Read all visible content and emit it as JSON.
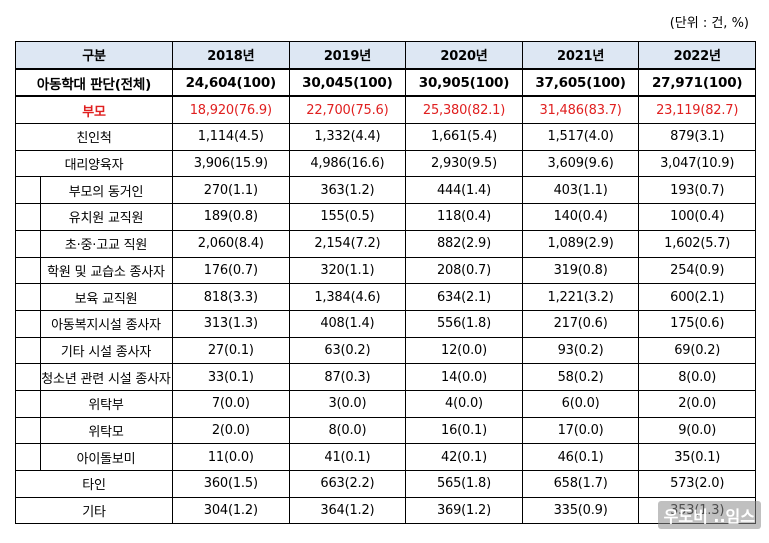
{
  "unit_note": "(단위 : 건, %)",
  "header": [
    "구분",
    "2018년",
    "2019년",
    "2020년",
    "2021년",
    "2022년"
  ],
  "rows": [
    {
      "label": "아동학대 판단(전체)",
      "values": [
        "24,604(100)",
        "30,045(100)",
        "30,905(100)",
        "37,605(100)",
        "27,971(100)"
      ]
    },
    {
      "label": "부모",
      "values": [
        "18,920(76.9)",
        "22,700(75.6)",
        "25,380(82.1)",
        "31,486(83.7)",
        "23,119(82.7)"
      ]
    },
    {
      "label": "친인척",
      "values": [
        "1,114(4.5)",
        "1,332(4.4)",
        "1,661(5.4)",
        "1,517(4.0)",
        "879(3.1)"
      ]
    },
    {
      "label": "대리양육자",
      "values": [
        "3,906(15.9)",
        "4,986(16.6)",
        "2,930(9.5)",
        "3,609(9.6)",
        "3,047(10.9)"
      ]
    },
    {
      "label": "부모의 동거인",
      "values": [
        "270(1.1)",
        "363(1.2)",
        "444(1.4)",
        "403(1.1)",
        "193(0.7)"
      ]
    },
    {
      "label": "유치원 교직원",
      "values": [
        "189(0.8)",
        "155(0.5)",
        "118(0.4)",
        "140(0.4)",
        "100(0.4)"
      ]
    },
    {
      "label": "초·중·고교 직원",
      "values": [
        "2,060(8.4)",
        "2,154(7.2)",
        "882(2.9)",
        "1,089(2.9)",
        "1,602(5.7)"
      ]
    },
    {
      "label": "학원 및 교습소 종사자",
      "values": [
        "176(0.7)",
        "320(1.1)",
        "208(0.7)",
        "319(0.8)",
        "254(0.9)"
      ]
    },
    {
      "label": "보육 교직원",
      "values": [
        "818(3.3)",
        "1,384(4.6)",
        "634(2.1)",
        "1,221(3.2)",
        "600(2.1)"
      ]
    },
    {
      "label": "아동복지시설 종사자",
      "values": [
        "313(1.3)",
        "408(1.4)",
        "556(1.8)",
        "217(0.6)",
        "175(0.6)"
      ]
    },
    {
      "label": "기타 시설 종사자",
      "values": [
        "27(0.1)",
        "63(0.2)",
        "12(0.0)",
        "93(0.2)",
        "69(0.2)"
      ]
    },
    {
      "label": "청소년 관련 시설 종사자",
      "values": [
        "33(0.1)",
        "87(0.3)",
        "14(0.0)",
        "58(0.2)",
        "8(0.0)"
      ]
    },
    {
      "label": "위탁부",
      "values": [
        "7(0.0)",
        "3(0.0)",
        "4(0.0)",
        "6(0.0)",
        "2(0.0)"
      ]
    },
    {
      "label": "위탁모",
      "values": [
        "2(0.0)",
        "8(0.0)",
        "16(0.1)",
        "17(0.0)",
        "9(0.0)"
      ]
    },
    {
      "label": "아이돌보미",
      "values": [
        "11(0.0)",
        "41(0.1)",
        "42(0.1)",
        "46(0.1)",
        "35(0.1)"
      ]
    },
    {
      "label": "타인",
      "values": [
        "360(1.5)",
        "663(2.2)",
        "565(1.8)",
        "658(1.7)",
        "573(2.0)"
      ]
    },
    {
      "label": "기타",
      "values": [
        "304(1.2)",
        "364(1.2)",
        "369(1.2)",
        "335(0.9)",
        "353(1.3)"
      ]
    }
  ],
  "watermark": "우도비 ..임스"
}
